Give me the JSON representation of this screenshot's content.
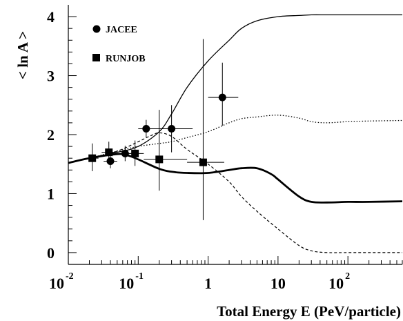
{
  "chart_data": {
    "type": "scatter",
    "xlabel": "Total Energy E (PeV/particle)",
    "ylabel": "< ln A >",
    "xscale": "log",
    "xlim": [
      0.01,
      600
    ],
    "ylim": [
      -0.2,
      4.2
    ],
    "grid": false,
    "legend_position": "top-left",
    "x_ticks": [
      {
        "value": 0.01,
        "base": "10",
        "exp": "-2"
      },
      {
        "value": 0.1,
        "base": "10",
        "exp": "-1"
      },
      {
        "value": 1,
        "base": "1",
        "exp": ""
      },
      {
        "value": 10,
        "base": "10",
        "exp": ""
      },
      {
        "value": 100,
        "base": "10",
        "exp": "2"
      }
    ],
    "y_ticks": [
      "0",
      "1",
      "2",
      "3",
      "4"
    ],
    "series": [
      {
        "name": "JACEE",
        "marker": "circle",
        "points": [
          {
            "x": 0.04,
            "y": 1.55,
            "xlo": 0.032,
            "xhi": 0.05,
            "ylo": 1.43,
            "yhi": 1.67
          },
          {
            "x": 0.065,
            "y": 1.68,
            "xlo": 0.05,
            "xhi": 0.08,
            "ylo": 1.55,
            "yhi": 1.81
          },
          {
            "x": 0.13,
            "y": 2.1,
            "xlo": 0.1,
            "xhi": 0.2,
            "ylo": 1.95,
            "yhi": 2.25
          },
          {
            "x": 0.3,
            "y": 2.1,
            "xlo": 0.2,
            "xhi": 0.6,
            "ylo": 1.7,
            "yhi": 2.5
          },
          {
            "x": 1.6,
            "y": 2.63,
            "xlo": 1.0,
            "xhi": 2.7,
            "ylo": 2.15,
            "yhi": 3.22
          }
        ]
      },
      {
        "name": "RUNJOB",
        "marker": "square",
        "points": [
          {
            "x": 0.022,
            "y": 1.6,
            "xlo": 0.018,
            "xhi": 0.027,
            "ylo": 1.38,
            "yhi": 1.85
          },
          {
            "x": 0.038,
            "y": 1.7,
            "xlo": 0.03,
            "xhi": 0.05,
            "ylo": 1.52,
            "yhi": 1.88
          },
          {
            "x": 0.09,
            "y": 1.68,
            "xlo": 0.06,
            "xhi": 0.12,
            "ylo": 1.47,
            "yhi": 1.9
          },
          {
            "x": 0.2,
            "y": 1.58,
            "xlo": 0.12,
            "xhi": 0.5,
            "ylo": 1.05,
            "yhi": 2.42
          },
          {
            "x": 0.85,
            "y": 1.53,
            "xlo": 0.5,
            "xhi": 1.7,
            "ylo": 0.55,
            "yhi": 3.62
          }
        ]
      }
    ],
    "lines": [
      {
        "style": "solid-thin",
        "x": [
          0.01,
          0.02,
          0.05,
          0.1,
          0.2,
          0.3,
          0.5,
          1,
          2,
          3,
          5,
          10,
          20,
          30,
          50,
          100,
          200,
          600
        ],
        "y": [
          1.52,
          1.6,
          1.7,
          1.8,
          2.05,
          2.35,
          2.8,
          3.25,
          3.6,
          3.8,
          3.93,
          4.0,
          4.02,
          4.03,
          4.03,
          4.03,
          4.03,
          4.03
        ]
      },
      {
        "style": "dotted",
        "x": [
          0.01,
          0.02,
          0.05,
          0.1,
          0.2,
          0.3,
          0.5,
          1,
          2,
          3,
          5,
          10,
          20,
          30,
          50,
          100,
          200,
          600
        ],
        "y": [
          1.52,
          1.6,
          1.72,
          1.8,
          1.85,
          1.88,
          1.95,
          2.05,
          2.2,
          2.27,
          2.3,
          2.33,
          2.28,
          2.22,
          2.2,
          2.22,
          2.23,
          2.24
        ]
      },
      {
        "style": "dashed",
        "x": [
          0.01,
          0.02,
          0.05,
          0.1,
          0.15,
          0.2,
          0.3,
          0.5,
          1,
          2,
          3,
          5,
          10,
          20,
          30,
          50,
          100,
          600
        ],
        "y": [
          1.52,
          1.6,
          1.72,
          1.88,
          1.98,
          2.03,
          1.97,
          1.75,
          1.5,
          1.2,
          0.95,
          0.7,
          0.4,
          0.12,
          0.03,
          0.0,
          0.0,
          0.0
        ]
      },
      {
        "style": "solid-thick",
        "x": [
          0.01,
          0.02,
          0.05,
          0.07,
          0.1,
          0.2,
          0.3,
          0.5,
          1,
          2,
          3,
          5,
          8,
          10,
          20,
          30,
          50,
          100,
          200,
          600
        ],
        "y": [
          1.52,
          1.6,
          1.67,
          1.65,
          1.58,
          1.42,
          1.37,
          1.35,
          1.35,
          1.4,
          1.43,
          1.43,
          1.33,
          1.24,
          0.95,
          0.86,
          0.85,
          0.86,
          0.86,
          0.87
        ]
      }
    ]
  }
}
